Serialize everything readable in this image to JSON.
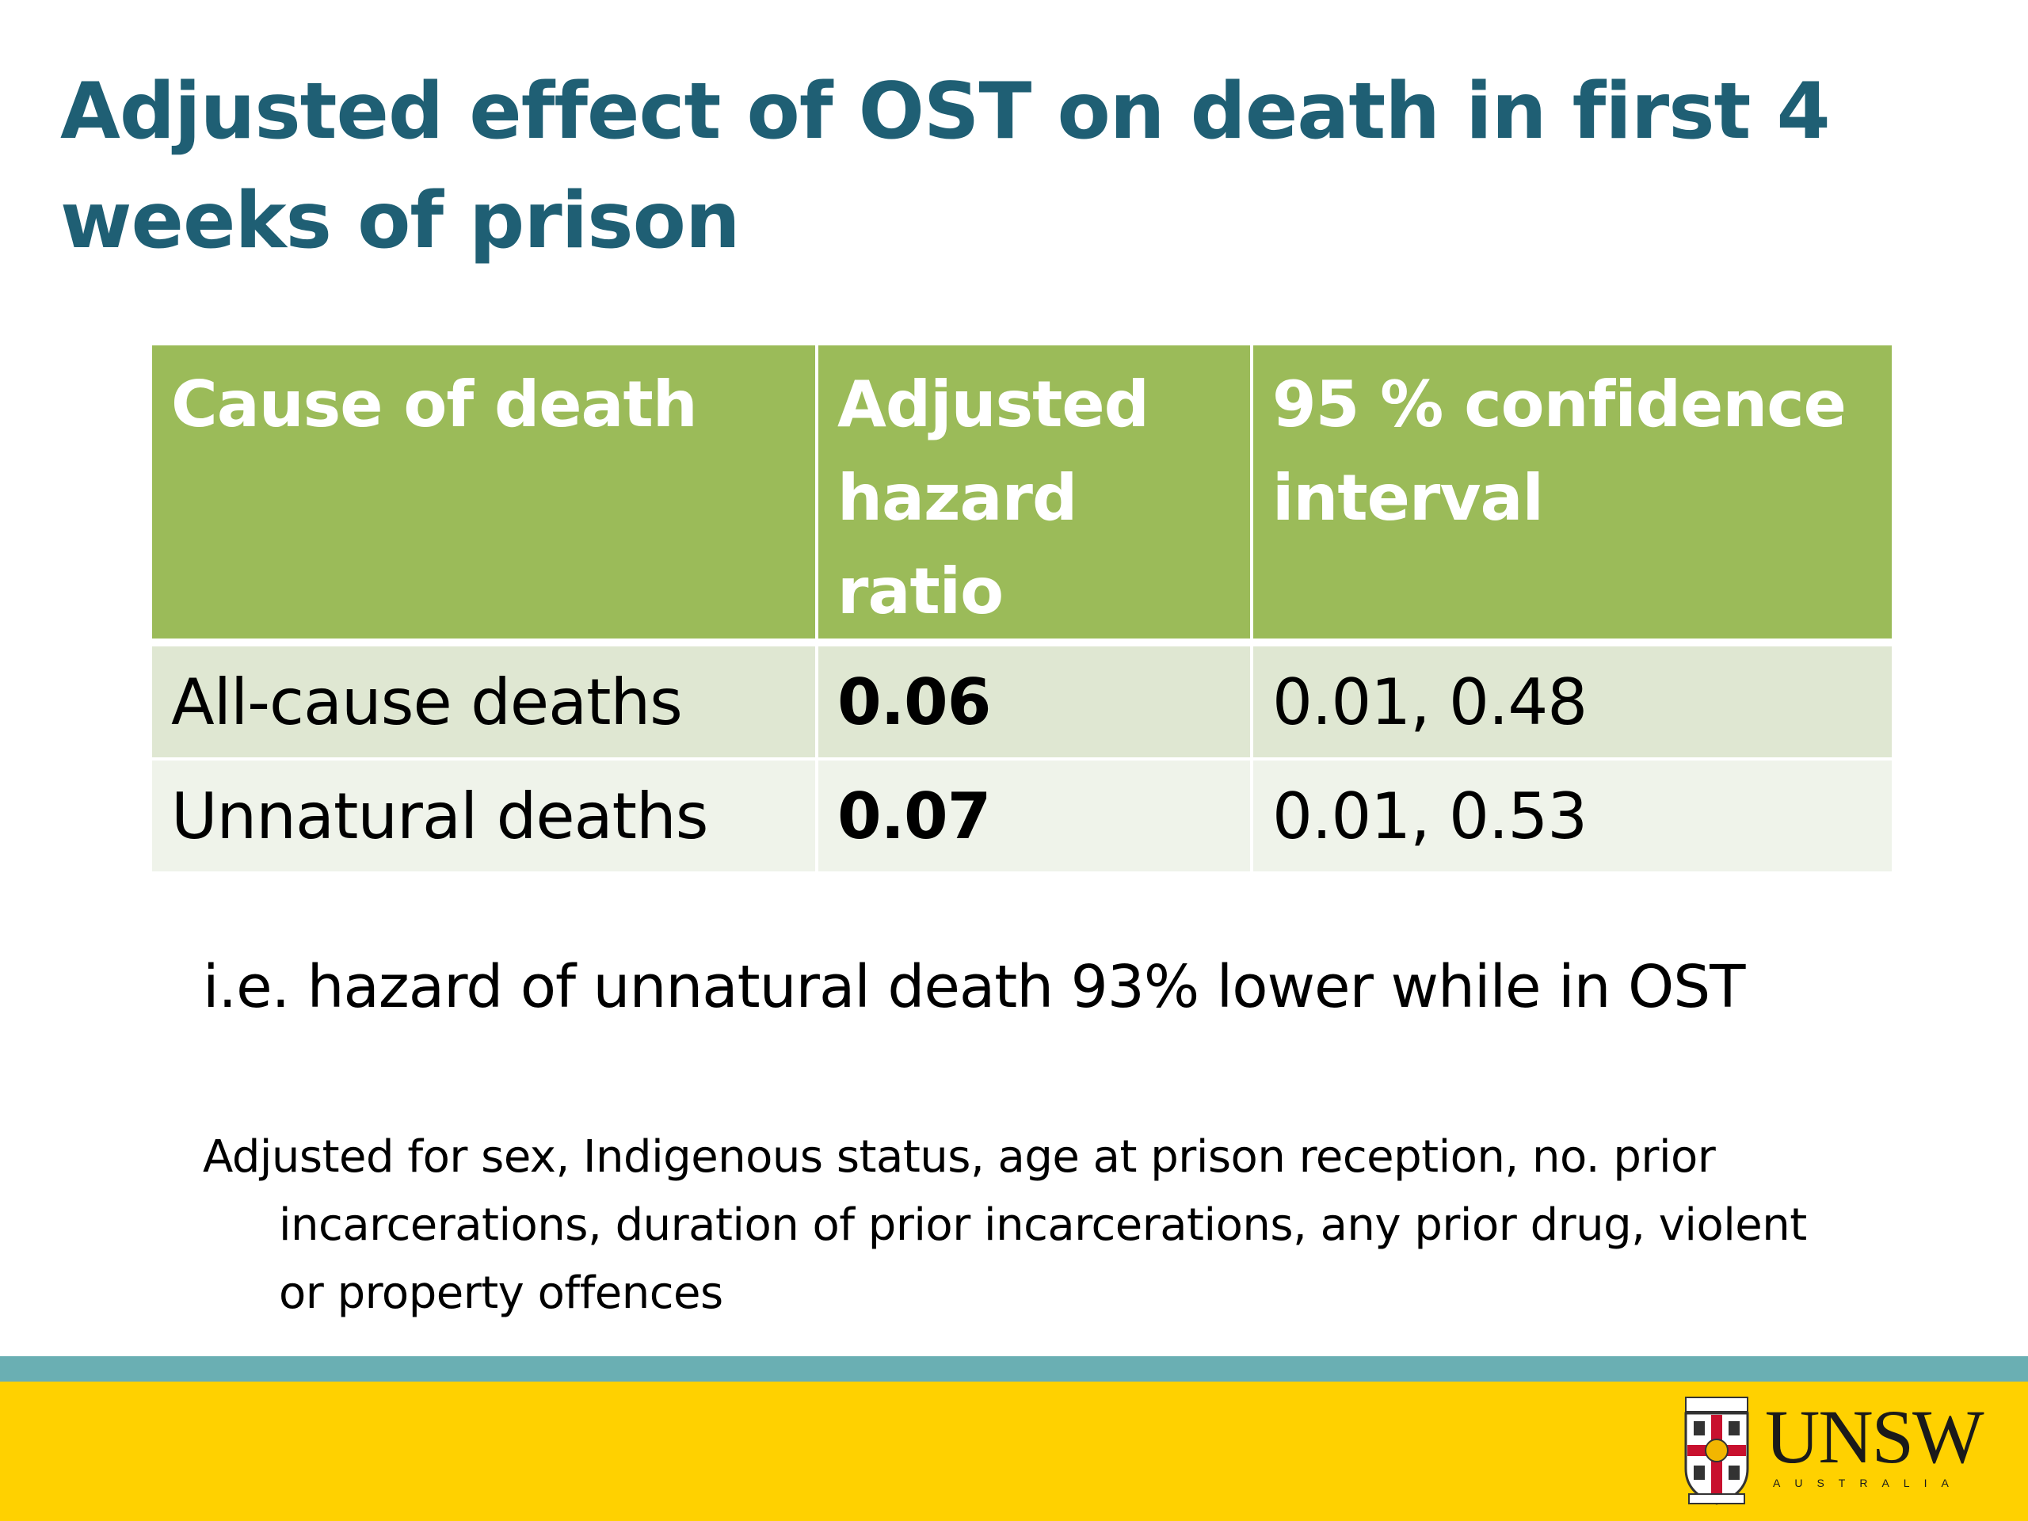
{
  "slide": {
    "title": "Adjusted effect of OST on death in first 4 weeks of prison"
  },
  "table": {
    "headers": [
      "Cause of death",
      "Adjusted hazard ratio",
      "95 % confidence interval"
    ],
    "rows": [
      {
        "cause": "All-cause deaths",
        "ratio": "0.06",
        "ci": "0.01, 0.48"
      },
      {
        "cause": "Unnatural deaths",
        "ratio": "0.07",
        "ci": "0.01, 0.53"
      }
    ]
  },
  "notes": {
    "interpretation": "i.e. hazard of unnatural death 93% lower while in OST",
    "adjustment": "Adjusted for sex, Indigenous status, age at prison reception, no. prior incarcerations, duration of prior incarcerations, any prior drug, violent or property offences"
  },
  "footer": {
    "logo_text": "UNSW",
    "logo_subtext": "AUSTRALIA",
    "crest_icon": "unsw-crest-icon"
  },
  "colors": {
    "title": "#1f5f74",
    "table_header": "#9bbb59",
    "row_odd": "#dfe7d2",
    "row_even": "#eff3ea",
    "footer_stripe": "#6aafb3",
    "footer_band": "#ffd100"
  }
}
